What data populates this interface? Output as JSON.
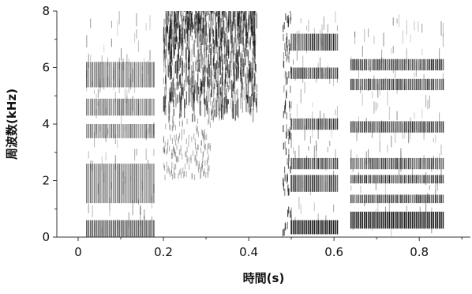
{
  "chart_data": {
    "type": "heatmap",
    "subtype": "spectrogram",
    "title": "",
    "xlabel": "時間(s)",
    "ylabel": "周波数(kHz)",
    "xlim": [
      -0.05,
      0.92
    ],
    "ylim": [
      0,
      8
    ],
    "x_ticks": [
      0,
      0.2,
      0.4,
      0.6,
      0.8
    ],
    "x_tick_labels": [
      "0",
      "0.2",
      "0.4",
      "0.6",
      "0.8"
    ],
    "y_ticks": [
      0,
      2,
      4,
      6,
      8
    ],
    "y_tick_labels": [
      "0",
      "2",
      "4",
      "6",
      "8"
    ],
    "grid": false,
    "colormap": "grayscale (dark = high energy)",
    "segments": [
      {
        "kind": "voiced",
        "t_start": 0.02,
        "t_end": 0.18,
        "energy_bands_khz": [
          [
            0.0,
            0.6
          ],
          [
            1.2,
            2.6
          ],
          [
            3.5,
            4.0
          ],
          [
            4.3,
            4.9
          ],
          [
            5.3,
            6.2
          ]
        ],
        "intensity": 0.7
      },
      {
        "kind": "fricative",
        "t_start": 0.2,
        "t_end": 0.42,
        "energy_bands_khz": [
          [
            4.0,
            8.0
          ]
        ],
        "intensity": 0.9
      },
      {
        "kind": "burst",
        "t_start": 0.48,
        "t_end": 0.5,
        "energy_bands_khz": [
          [
            0.0,
            8.0
          ]
        ],
        "intensity": 0.6
      },
      {
        "kind": "voiced",
        "t_start": 0.5,
        "t_end": 0.61,
        "energy_bands_khz": [
          [
            0.1,
            0.6
          ],
          [
            1.6,
            2.2
          ],
          [
            2.4,
            2.8
          ],
          [
            3.8,
            4.2
          ],
          [
            5.6,
            6.0
          ],
          [
            6.6,
            7.2
          ]
        ],
        "intensity": 1.0
      },
      {
        "kind": "voiced",
        "t_start": 0.64,
        "t_end": 0.86,
        "energy_bands_khz": [
          [
            0.3,
            0.9
          ],
          [
            1.2,
            1.5
          ],
          [
            1.9,
            2.2
          ],
          [
            2.4,
            2.8
          ],
          [
            3.7,
            4.1
          ],
          [
            5.2,
            5.6
          ],
          [
            5.9,
            6.3
          ]
        ],
        "intensity": 1.0
      }
    ]
  }
}
